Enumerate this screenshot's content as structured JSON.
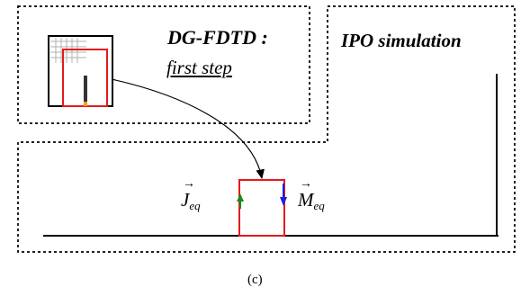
{
  "labels": {
    "dgfdtd_title": "DG-FDTD :",
    "dgfdtd_subtitle": "first step",
    "ipo_title": "IPO simulation",
    "caption": "(c)"
  },
  "vectors": {
    "j_symbol": "J",
    "j_subscript": "eq",
    "m_symbol": "M",
    "m_subscript": "eq",
    "arrow_glyph": "→"
  },
  "colors": {
    "dotted_border": "#000000",
    "red_box": "#e31a1c",
    "green_arrow": "#1a8a1a",
    "blue_arrow": "#1f1fdd",
    "orange_tip": "#f0a020",
    "grid": "#b0b0b0"
  }
}
